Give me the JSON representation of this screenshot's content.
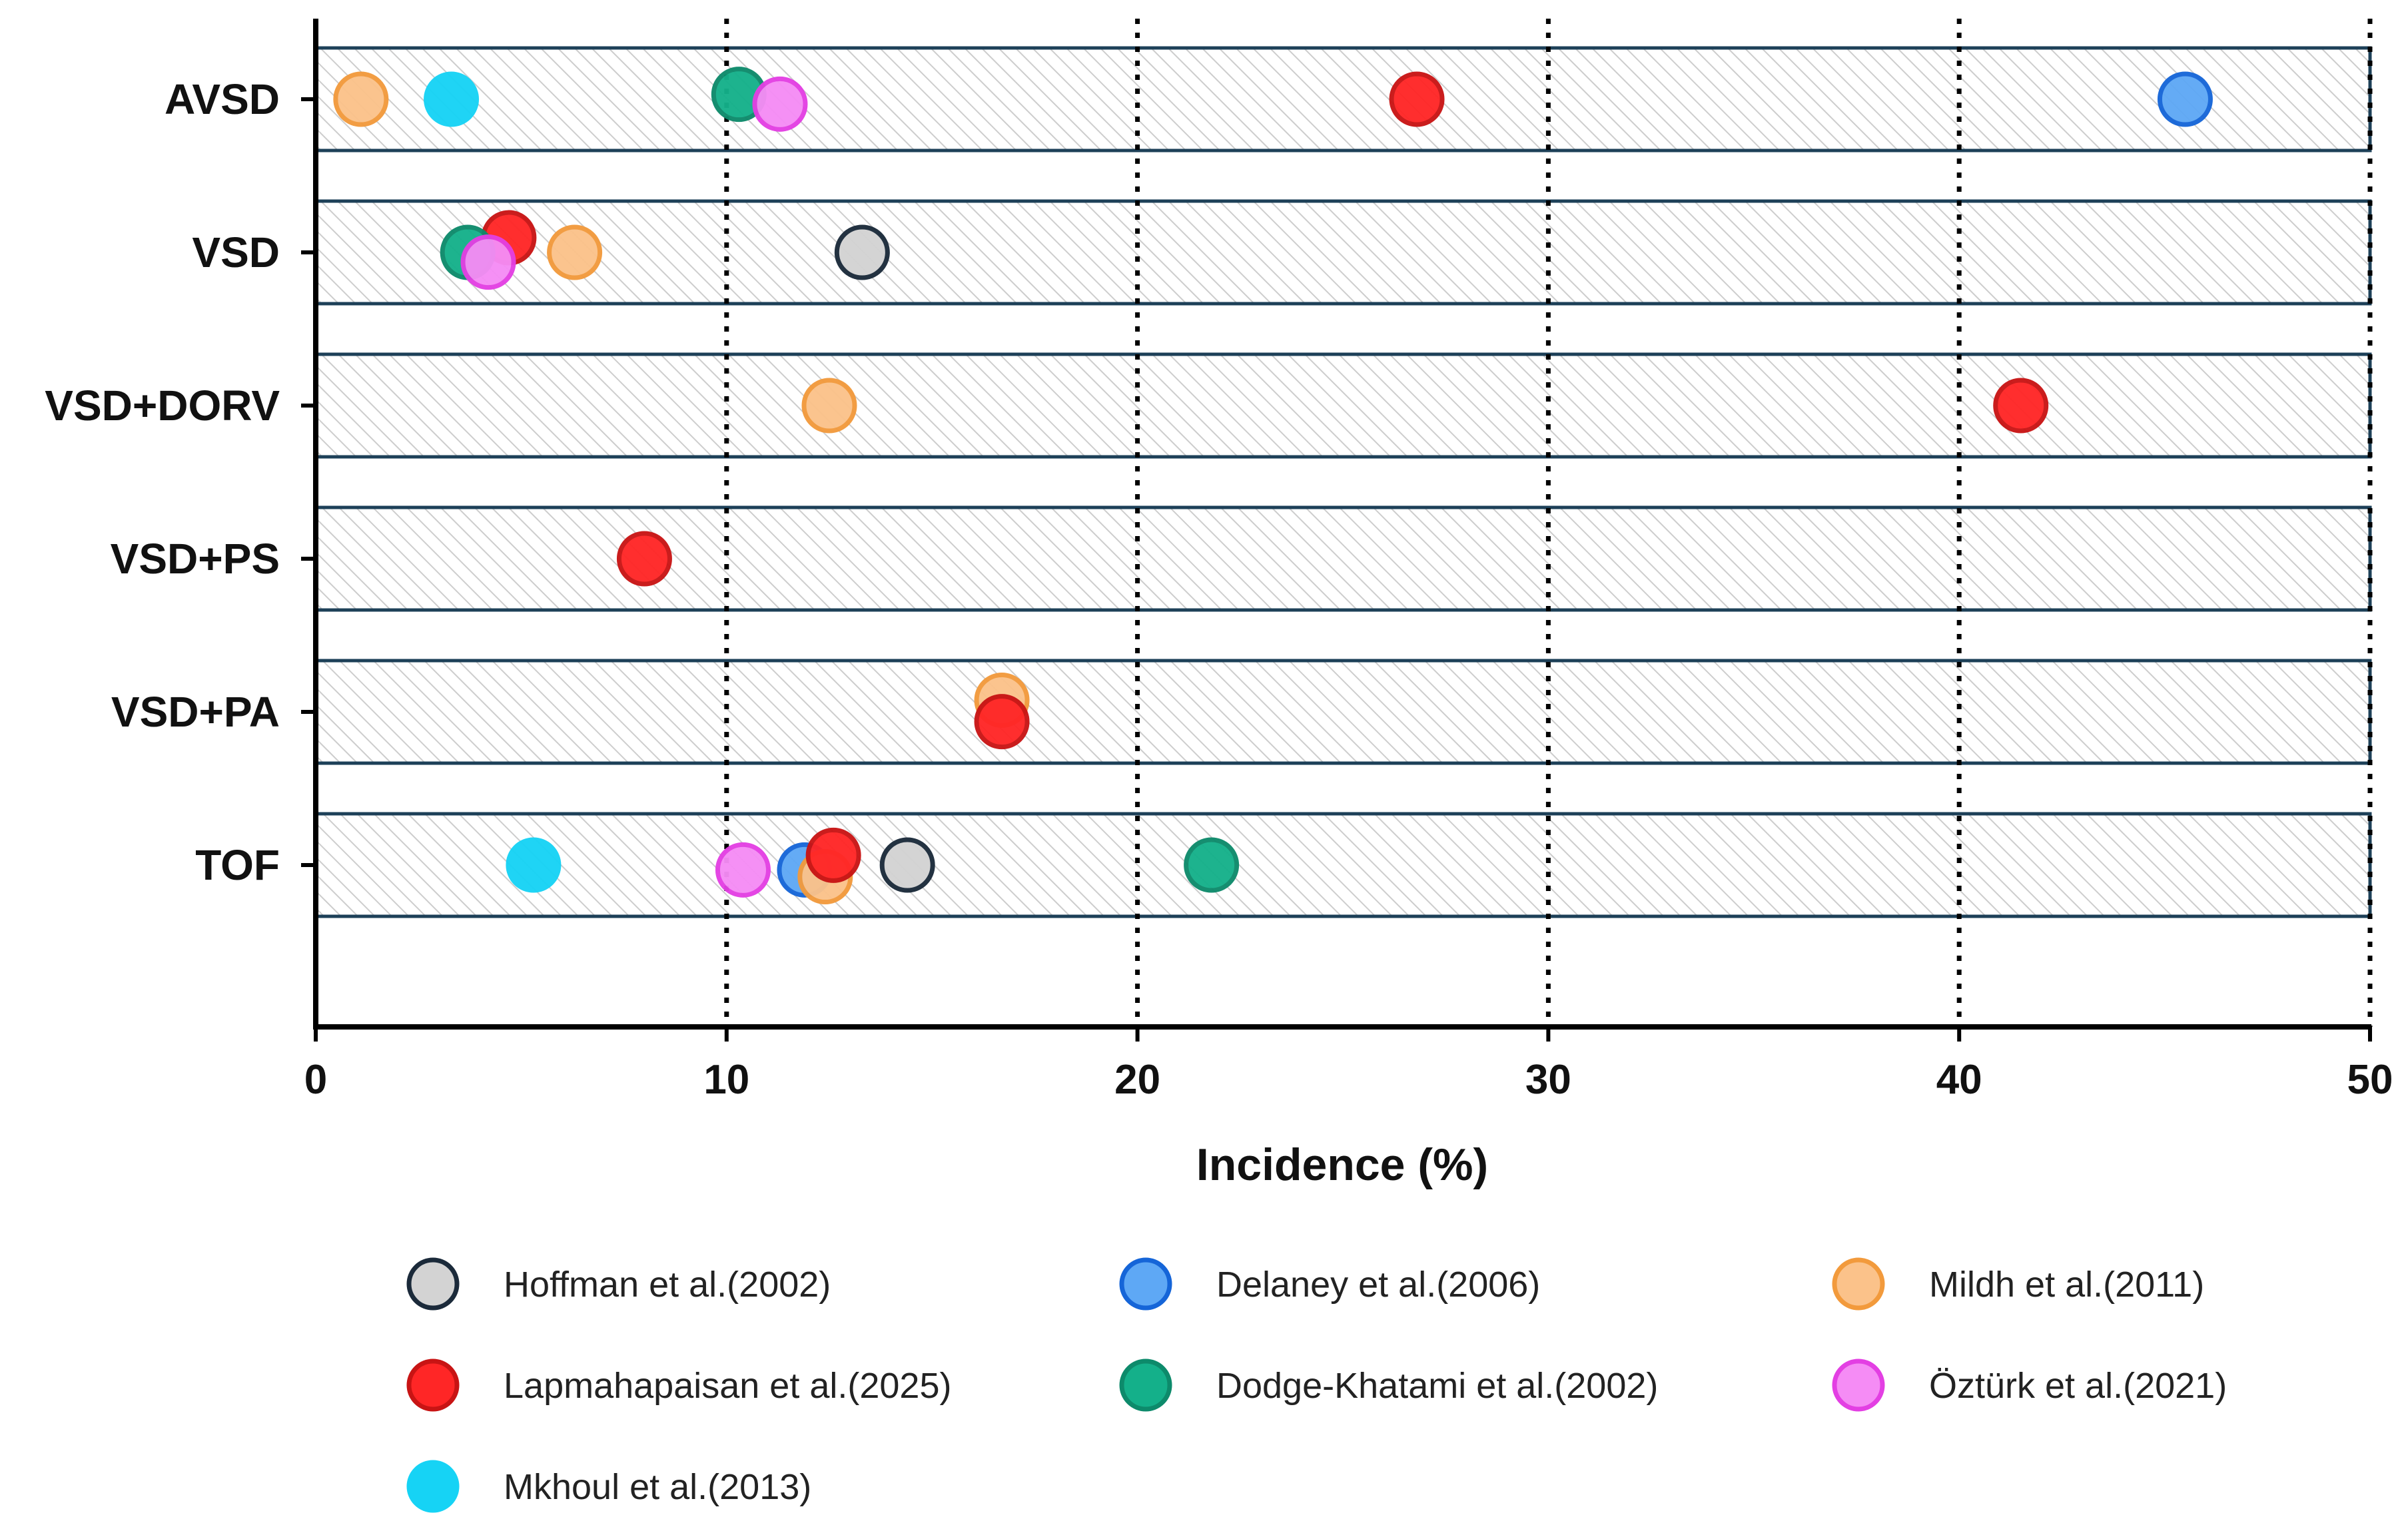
{
  "chart_data": {
    "type": "scatter",
    "xlabel": "Incidence (%)",
    "xlim": [
      0,
      50
    ],
    "xticks": [
      "0",
      "10",
      "20",
      "30",
      "40",
      "50"
    ],
    "categories": [
      "AVSD",
      "VSD",
      "VSD+DORV",
      "VSD+PS",
      "VSD+PA",
      "TOF"
    ],
    "series": [
      {
        "name": "Hoffman et al.(2002)",
        "fill": "#d3d3d3",
        "stroke": "#1b2a3a",
        "points": [
          {
            "category": "VSD",
            "x": 13.3,
            "offset": 0
          },
          {
            "category": "TOF",
            "x": 14.4,
            "offset": 0
          }
        ]
      },
      {
        "name": "Delaney et al.(2006)",
        "fill": "#5ea8f5",
        "stroke": "#1565d8",
        "points": [
          {
            "category": "AVSD",
            "x": 45.5,
            "offset": 0
          },
          {
            "category": "TOF",
            "x": 11.9,
            "offset": 0.05
          }
        ]
      },
      {
        "name": "Mildh et al.(2011)",
        "fill": "#fbc28a",
        "stroke": "#f29a3c",
        "points": [
          {
            "category": "AVSD",
            "x": 1.1,
            "offset": 0
          },
          {
            "category": "VSD",
            "x": 6.3,
            "offset": 0
          },
          {
            "category": "VSD+DORV",
            "x": 12.5,
            "offset": 0
          },
          {
            "category": "VSD+PA",
            "x": 16.7,
            "offset": -0.12
          },
          {
            "category": "TOF",
            "x": 12.4,
            "offset": 0.12
          }
        ]
      },
      {
        "name": "Lapmahapaisan et al.(2025)",
        "fill": "#ff2626",
        "stroke": "#c81414",
        "points": [
          {
            "category": "AVSD",
            "x": 26.8,
            "offset": 0
          },
          {
            "category": "VSD",
            "x": 4.7,
            "offset": -0.15
          },
          {
            "category": "VSD+DORV",
            "x": 41.5,
            "offset": 0
          },
          {
            "category": "VSD+PS",
            "x": 8.0,
            "offset": 0
          },
          {
            "category": "VSD+PA",
            "x": 16.7,
            "offset": 0.1
          },
          {
            "category": "TOF",
            "x": 12.6,
            "offset": -0.1
          }
        ]
      },
      {
        "name": "Dodge-Khatami et al.(2002)",
        "fill": "#14b08a",
        "stroke": "#0d8a6b",
        "points": [
          {
            "category": "AVSD",
            "x": 10.3,
            "offset": -0.05
          },
          {
            "category": "VSD",
            "x": 3.7,
            "offset": 0
          },
          {
            "category": "TOF",
            "x": 21.8,
            "offset": 0
          }
        ]
      },
      {
        "name": "Öztürk et al.(2021)",
        "fill": "#f58cf5",
        "stroke": "#e33fe3",
        "points": [
          {
            "category": "AVSD",
            "x": 11.3,
            "offset": 0.05
          },
          {
            "category": "VSD",
            "x": 4.2,
            "offset": 0.1
          },
          {
            "category": "TOF",
            "x": 10.4,
            "offset": 0.05
          }
        ]
      },
      {
        "name": "Mkhoul et al.(2013)",
        "fill": "#16d3f5",
        "stroke": "#16d3f5",
        "points": [
          {
            "category": "AVSD",
            "x": 3.3,
            "offset": 0
          },
          {
            "category": "TOF",
            "x": 5.3,
            "offset": 0
          }
        ]
      }
    ],
    "grid": "dotted vertical at 10, 20, 30, 40, 50",
    "legend": "bottom"
  },
  "colors": {
    "axis": "#000000",
    "band_stroke": "#1d4058",
    "band_hatch": "#c8c8c8",
    "gridline": "#000000"
  }
}
